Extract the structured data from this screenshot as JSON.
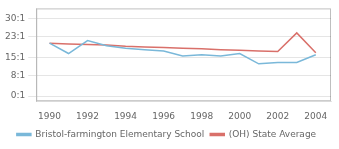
{
  "chart_data": {
    "type": "line",
    "x": [
      1990,
      1991,
      1992,
      1993,
      1994,
      1995,
      1996,
      1997,
      1998,
      1999,
      2000,
      2001,
      2002,
      2003,
      2004
    ],
    "series": [
      {
        "name": "Bristol-farmington Elementary School",
        "color": "#7ab8d9",
        "values": [
          20.5,
          16.5,
          21.5,
          19.5,
          18.5,
          18.0,
          17.5,
          15.5,
          16.0,
          15.5,
          16.5,
          12.5,
          13.0,
          13.0,
          16.0
        ]
      },
      {
        "name": "(OH) State Average",
        "color": "#d9706a",
        "values": [
          20.5,
          20.2,
          20.0,
          19.8,
          19.3,
          19.0,
          18.8,
          18.5,
          18.3,
          18.0,
          17.8,
          17.5,
          17.3,
          24.5,
          16.8
        ]
      }
    ],
    "xlim": [
      1989.3,
      2004.8
    ],
    "ylim": [
      -2,
      34
    ],
    "xticks": [
      1990,
      1992,
      1994,
      1996,
      1998,
      2000,
      2002,
      2004
    ],
    "yticks": [
      {
        "value": 0,
        "label": "0:1"
      },
      {
        "value": 8,
        "label": "8:1"
      },
      {
        "value": 15,
        "label": "15:1"
      },
      {
        "value": 23,
        "label": "23:1"
      },
      {
        "value": 30,
        "label": "30:1"
      }
    ],
    "grid": "y",
    "legend": "bottom"
  }
}
